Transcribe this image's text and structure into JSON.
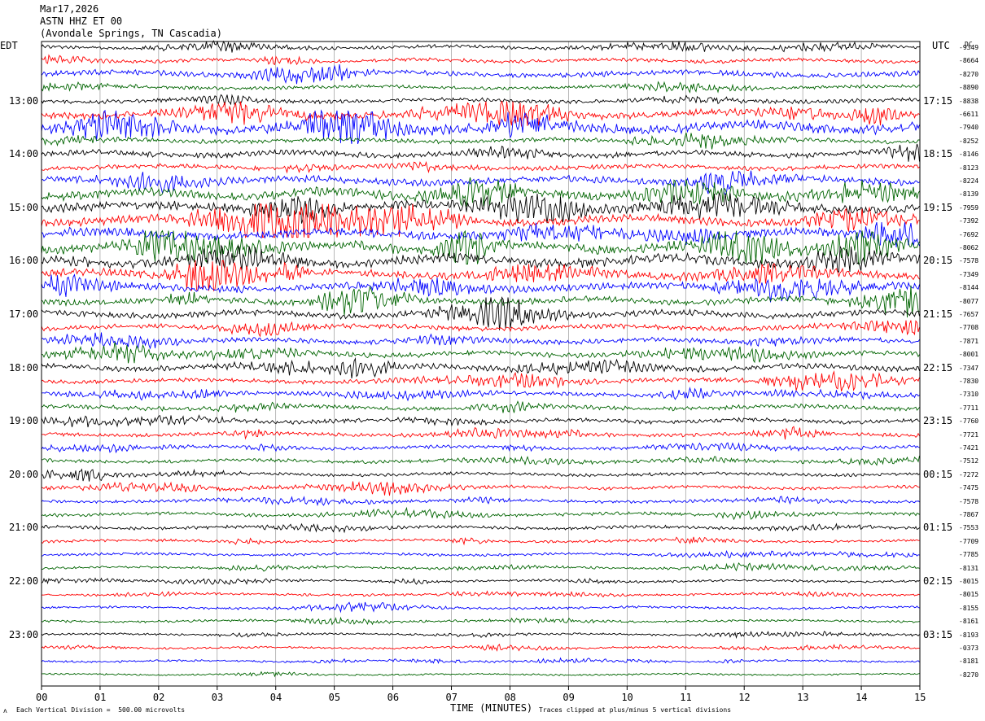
{
  "header": {
    "date": "Mar17,2026",
    "station": "ASTN HHZ ET 00",
    "location": "(Avondale Springs, TN Cascadia)"
  },
  "left_tz": "EDT",
  "right_tz": "UTC",
  "dc_label": "DC",
  "footer": {
    "scale_note": "Each Vertical Division =  500.00 microvolts",
    "x_title": "TIME (MINUTES)",
    "clip_note": "Traces clipped at plus/minus 5 vertical divisions",
    "corner_mark": "ʌ"
  },
  "colors": {
    "cycle": [
      "#000000",
      "#ff0000",
      "#0000ff",
      "#006400"
    ],
    "grid": "#888888"
  },
  "chart_data": {
    "type": "line",
    "subtype": "helicorder",
    "minutes_per_trace": 15,
    "trace_count": 48,
    "xlim": [
      0,
      15
    ],
    "x_ticks": [
      "00",
      "01",
      "02",
      "03",
      "04",
      "05",
      "06",
      "07",
      "08",
      "09",
      "10",
      "11",
      "12",
      "13",
      "14",
      "15"
    ],
    "left_hour_labels": [
      "13:00",
      "14:00",
      "15:00",
      "16:00",
      "17:00",
      "18:00",
      "19:00",
      "20:00",
      "21:00",
      "22:00",
      "23:00"
    ],
    "right_hour_labels": [
      "17:15",
      "18:15",
      "19:15",
      "20:15",
      "21:15",
      "22:15",
      "23:15",
      "00:15",
      "01:15",
      "02:15",
      "03:15"
    ],
    "hour_label_trace_index": [
      4,
      8,
      12,
      16,
      20,
      24,
      28,
      32,
      36,
      40,
      44
    ],
    "dc_offsets": [
      "-9349",
      "-8664",
      "-8270",
      "-8890",
      "-8838",
      "-6611",
      "-7940",
      "-8252",
      "-8146",
      "-8123",
      "-8224",
      "-8139",
      "-7959",
      "-7392",
      "-7692",
      "-8062",
      "-7578",
      "-7349",
      "-8144",
      "-8077",
      "-7657",
      "-7708",
      "-7871",
      "-8001",
      "-7347",
      "-7830",
      "-7310",
      "-7711",
      "-7760",
      "-7721",
      "-7421",
      "-7512",
      "-7272",
      "-7475",
      "-7578",
      "-7867",
      "-7553",
      "-7709",
      "-7785",
      "-8131",
      "-8015",
      "-8015",
      "-8155",
      "-8161",
      "-8193",
      "-0373",
      "-8181",
      "-8270"
    ],
    "relative_amplitude": [
      0.5,
      0.55,
      0.8,
      0.5,
      0.6,
      1.0,
      1.4,
      0.6,
      0.8,
      0.7,
      1.0,
      1.3,
      1.3,
      1.2,
      1.3,
      1.4,
      1.4,
      1.1,
      1.0,
      0.9,
      0.9,
      0.7,
      0.7,
      0.7,
      0.8,
      0.6,
      0.6,
      0.65,
      0.6,
      0.55,
      0.5,
      0.5,
      0.45,
      0.45,
      0.45,
      0.5,
      0.45,
      0.4,
      0.4,
      0.35,
      0.35,
      0.35,
      0.35,
      0.35,
      0.3,
      0.3,
      0.3,
      0.25
    ],
    "clip_divisions": 5
  }
}
